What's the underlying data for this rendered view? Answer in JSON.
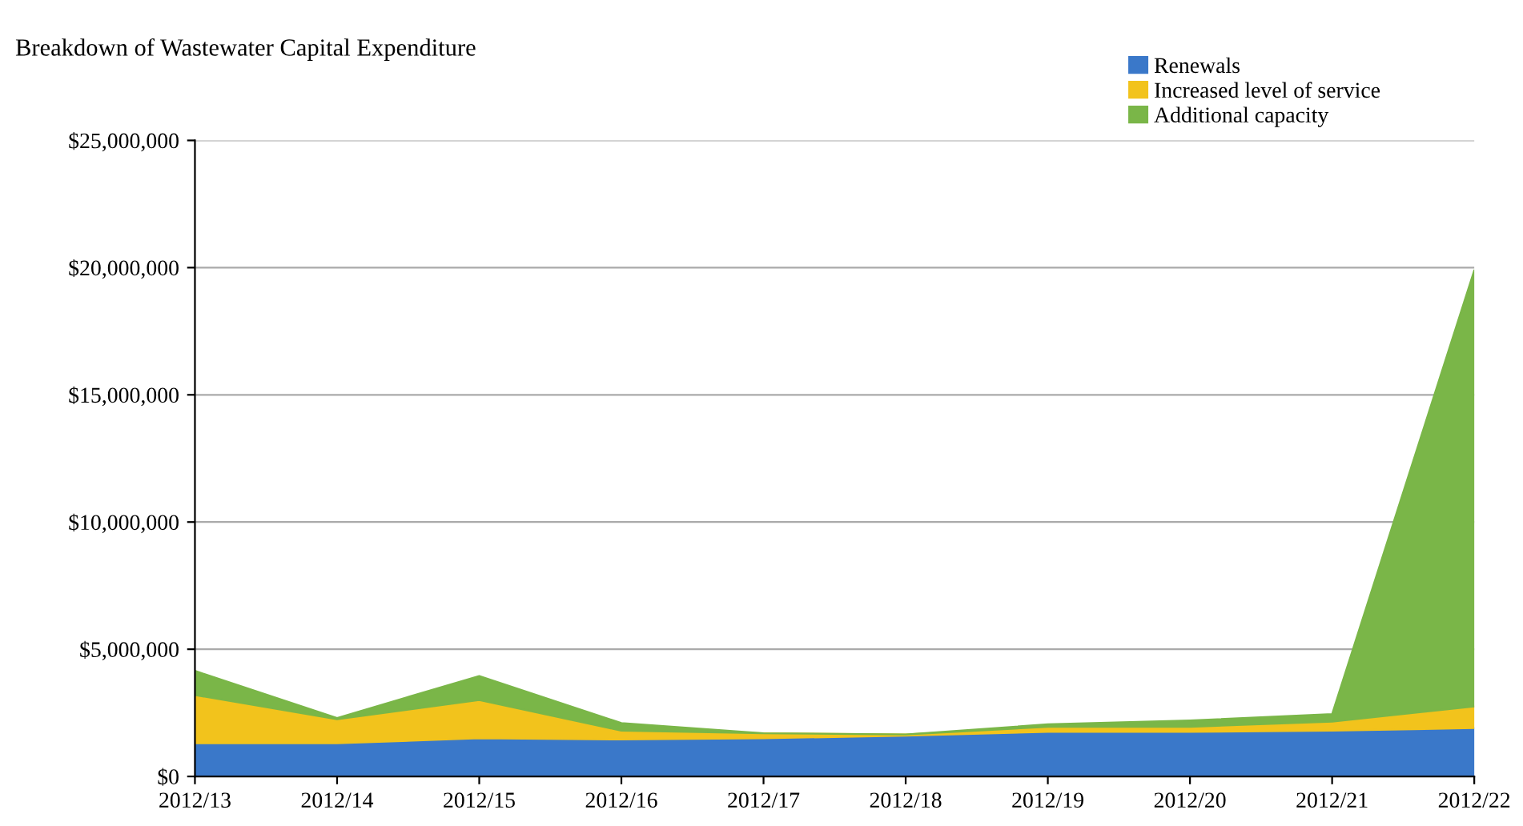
{
  "chart_data": {
    "type": "area",
    "stacked": true,
    "title": "Breakdown of Wastewater Capital Expenditure",
    "categories": [
      "2012/13",
      "2012/14",
      "2012/15",
      "2012/16",
      "2012/17",
      "2012/18",
      "2012/19",
      "2012/20",
      "2012/21",
      "2012/22"
    ],
    "series": [
      {
        "name": "Renewals",
        "color": "#3a78c9",
        "values": [
          1300000,
          1300000,
          1500000,
          1450000,
          1500000,
          1600000,
          1750000,
          1750000,
          1800000,
          1900000
        ]
      },
      {
        "name": "Increased level of service",
        "color": "#f2c31c",
        "values": [
          1900000,
          950000,
          1500000,
          350000,
          200000,
          50000,
          200000,
          200000,
          350000,
          850000
        ]
      },
      {
        "name": "Additional capacity",
        "color": "#7ab648",
        "values": [
          950000,
          50000,
          950000,
          300000,
          0,
          0,
          100000,
          250000,
          300000,
          17150000
        ]
      }
    ],
    "ylim": [
      0,
      25000000
    ],
    "yticks": [
      {
        "value": 0,
        "label": "$0"
      },
      {
        "value": 5000000,
        "label": "$5,000,000"
      },
      {
        "value": 10000000,
        "label": "$10,000,000"
      },
      {
        "value": 15000000,
        "label": "$15,000,000"
      },
      {
        "value": 20000000,
        "label": "$20,000,000"
      },
      {
        "value": 25000000,
        "label": "$25,000,000"
      }
    ],
    "grid": "y",
    "legend": "top right"
  }
}
